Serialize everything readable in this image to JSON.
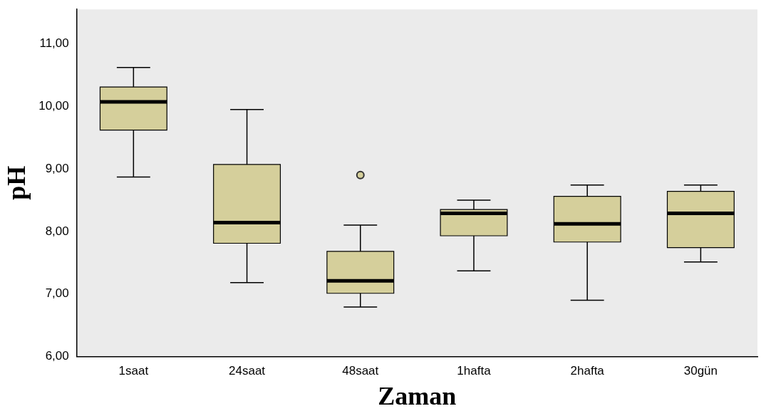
{
  "chart_data": {
    "type": "box",
    "xlabel": "Zaman",
    "ylabel": "pH",
    "categories": [
      "1saat",
      "24saat",
      "48saat",
      "1hafta",
      "2hafta",
      "30gün"
    ],
    "color": "#d5cf9b",
    "boxes": [
      {
        "low": 8.87,
        "q1": 9.62,
        "median": 10.07,
        "q3": 10.31,
        "high": 10.62
      },
      {
        "low": 7.18,
        "q1": 7.81,
        "median": 8.14,
        "q3": 9.07,
        "high": 9.95
      },
      {
        "low": 6.79,
        "q1": 7.01,
        "median": 7.21,
        "q3": 7.68,
        "high": 8.1,
        "outliers": [
          8.9
        ]
      },
      {
        "low": 7.37,
        "q1": 7.93,
        "median": 8.29,
        "q3": 8.35,
        "high": 8.5
      },
      {
        "low": 6.9,
        "q1": 7.83,
        "median": 8.12,
        "q3": 8.56,
        "high": 8.74
      },
      {
        "low": 7.51,
        "q1": 7.74,
        "median": 8.29,
        "q3": 8.64,
        "high": 8.74
      }
    ],
    "ylim": [
      6,
      11.55
    ],
    "yticks": [
      {
        "value": 6,
        "label": "6,00"
      },
      {
        "value": 7,
        "label": "7,00"
      },
      {
        "value": 8,
        "label": "8,00"
      },
      {
        "value": 9,
        "label": "9,00"
      },
      {
        "value": 10,
        "label": "10,00"
      },
      {
        "value": 11,
        "label": "11,00"
      }
    ],
    "grid": false,
    "legend": false
  }
}
